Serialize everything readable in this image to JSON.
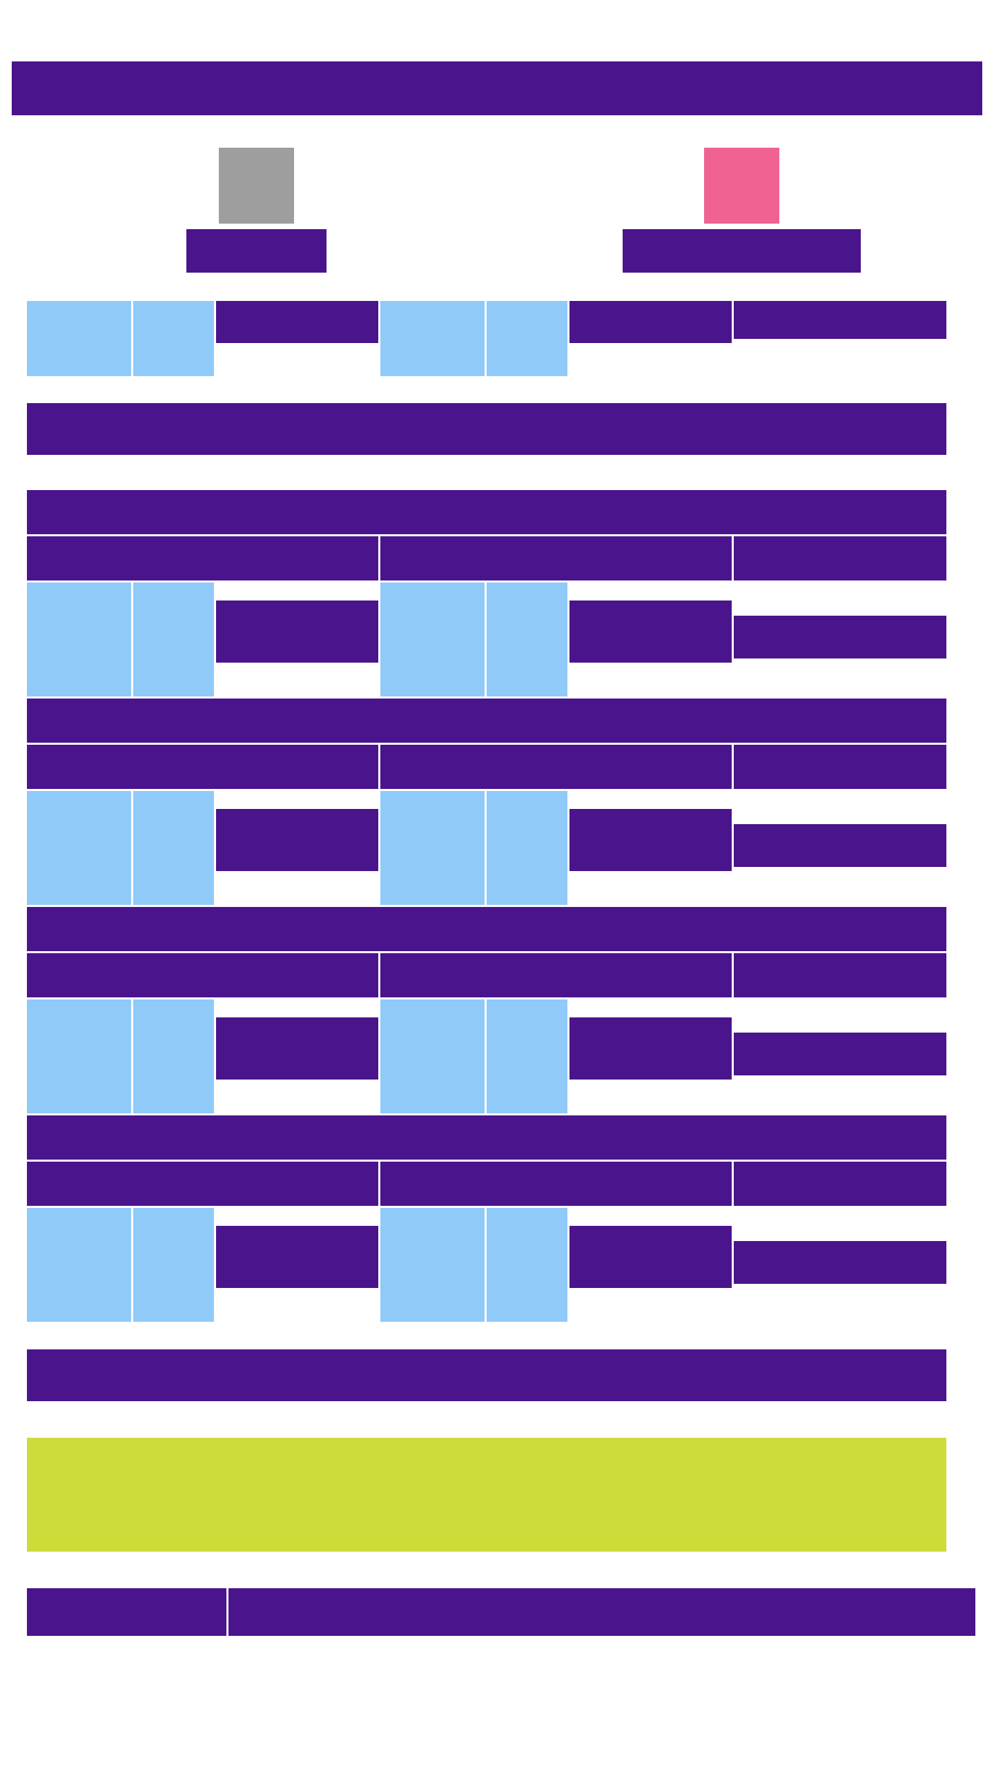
{
  "colors": {
    "purple": "#4a148c",
    "light_blue": "#90caf9",
    "gray": "#9e9e9e",
    "pink": "#f06292",
    "lime": "#cddc39",
    "background": "#ffffff"
  },
  "header": {
    "title": ""
  },
  "players": [
    {
      "avatar_icon": "avatar-placeholder-icon",
      "avatar_color": "#9e9e9e",
      "name": ""
    },
    {
      "avatar_icon": "avatar-placeholder-icon",
      "avatar_color": "#f06292",
      "name": ""
    }
  ],
  "score_row": {
    "home_label": "",
    "away_label": "",
    "result_label": ""
  },
  "section_title": "",
  "rounds": [
    {
      "title": "",
      "col1_header": "",
      "col2_header": "",
      "col3_header": "",
      "home_text": "",
      "away_text": "",
      "result_text": ""
    },
    {
      "title": "",
      "col1_header": "",
      "col2_header": "",
      "col3_header": "",
      "home_text": "",
      "away_text": "",
      "result_text": ""
    },
    {
      "title": "",
      "col1_header": "",
      "col2_header": "",
      "col3_header": "",
      "home_text": "",
      "away_text": "",
      "result_text": ""
    },
    {
      "title": "",
      "col1_header": "",
      "col2_header": "",
      "col3_header": "",
      "home_text": "",
      "away_text": "",
      "result_text": ""
    }
  ],
  "summary_bar": "",
  "highlight_panel": "",
  "footer": {
    "left": "",
    "right": ""
  }
}
